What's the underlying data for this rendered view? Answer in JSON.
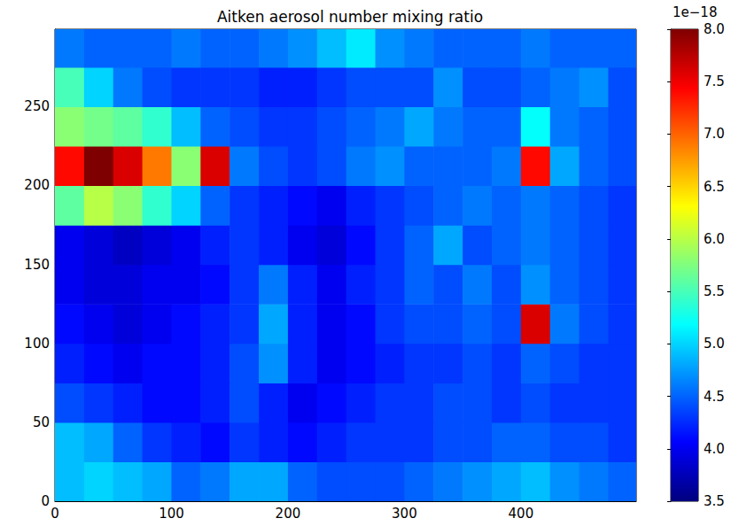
{
  "chart_data": {
    "type": "heatmap",
    "title": "Aitken aerosol number mixing ratio",
    "xlim": [
      0,
      499
    ],
    "ylim": [
      0,
      299
    ],
    "xticks": [
      0,
      100,
      200,
      300,
      400
    ],
    "yticks": [
      0,
      50,
      100,
      150,
      200,
      250
    ],
    "grid": false,
    "cells": {
      "x_edges": [
        0,
        25,
        50,
        75,
        100,
        125,
        150,
        175,
        200,
        225,
        250,
        275,
        300,
        325,
        350,
        375,
        400,
        425,
        450,
        475,
        500
      ],
      "y_edges": [
        0,
        25,
        50,
        75,
        100,
        125,
        150,
        175,
        200,
        225,
        250,
        275,
        300
      ],
      "values": [
        [
          4.9,
          5.0,
          4.9,
          4.8,
          4.5,
          4.6,
          4.8,
          4.8,
          4.5,
          4.4,
          4.4,
          4.4,
          4.5,
          4.6,
          4.7,
          4.8,
          4.9,
          4.7,
          4.6,
          4.5
        ],
        [
          4.9,
          4.8,
          4.5,
          4.3,
          4.2,
          4.1,
          4.3,
          4.2,
          4.1,
          4.2,
          4.3,
          4.3,
          4.3,
          4.4,
          4.4,
          4.5,
          4.5,
          4.4,
          4.4,
          4.3
        ],
        [
          4.4,
          4.3,
          4.2,
          4.1,
          4.1,
          4.2,
          4.4,
          4.2,
          4.0,
          4.1,
          4.2,
          4.3,
          4.3,
          4.4,
          4.4,
          4.3,
          4.4,
          4.3,
          4.3,
          4.3
        ],
        [
          4.2,
          4.1,
          4.0,
          4.1,
          4.1,
          4.2,
          4.4,
          4.7,
          4.2,
          4.0,
          4.1,
          4.2,
          4.3,
          4.3,
          4.4,
          4.3,
          4.5,
          4.4,
          4.3,
          4.3
        ],
        [
          4.1,
          4.0,
          3.9,
          4.0,
          4.1,
          4.2,
          4.3,
          4.8,
          4.2,
          4.0,
          4.1,
          4.3,
          4.4,
          4.4,
          4.5,
          4.4,
          7.6,
          4.6,
          4.4,
          4.3
        ],
        [
          4.0,
          3.9,
          3.9,
          4.0,
          4.0,
          4.1,
          4.3,
          4.6,
          4.2,
          4.0,
          4.2,
          4.3,
          4.5,
          4.4,
          4.6,
          4.4,
          4.7,
          4.5,
          4.4,
          4.3
        ],
        [
          4.0,
          3.9,
          3.8,
          3.9,
          4.0,
          4.2,
          4.3,
          4.2,
          4.0,
          3.9,
          4.1,
          4.3,
          4.5,
          4.8,
          4.4,
          4.5,
          4.6,
          4.5,
          4.4,
          4.3
        ],
        [
          5.6,
          6.0,
          5.8,
          5.4,
          5.0,
          4.5,
          4.3,
          4.2,
          4.1,
          4.0,
          4.2,
          4.3,
          4.4,
          4.5,
          4.6,
          4.5,
          4.6,
          4.5,
          4.4,
          4.3
        ],
        [
          7.4,
          8.0,
          7.6,
          6.9,
          5.8,
          7.6,
          4.6,
          4.4,
          4.3,
          4.4,
          4.6,
          4.7,
          4.5,
          4.5,
          4.5,
          4.6,
          7.4,
          4.8,
          4.5,
          4.4
        ],
        [
          5.8,
          5.7,
          5.6,
          5.4,
          4.9,
          4.5,
          4.4,
          4.3,
          4.3,
          4.4,
          4.5,
          4.6,
          4.8,
          4.6,
          4.5,
          4.5,
          5.2,
          4.6,
          4.5,
          4.4
        ],
        [
          5.5,
          5.0,
          4.6,
          4.4,
          4.3,
          4.3,
          4.3,
          4.2,
          4.2,
          4.3,
          4.4,
          4.4,
          4.4,
          4.7,
          4.4,
          4.4,
          4.5,
          4.6,
          4.7,
          4.4
        ],
        [
          4.6,
          4.5,
          4.5,
          4.5,
          4.6,
          4.5,
          4.5,
          4.6,
          4.7,
          4.9,
          5.1,
          4.7,
          4.6,
          4.5,
          4.5,
          4.5,
          4.6,
          4.5,
          4.5,
          4.5
        ]
      ]
    },
    "colorbar": {
      "range": [
        3.5,
        8.0
      ],
      "ticks": [
        3.5,
        {
          "value": 4,
          "label": "4.0"
        },
        4.5,
        {
          "value": 5,
          "label": "5.0"
        },
        5.5,
        {
          "value": 6,
          "label": "6.0"
        },
        6.5,
        {
          "value": 7,
          "label": "7.0"
        },
        7.5,
        {
          "value": 8,
          "label": "8.0"
        }
      ],
      "offset_label": "1e−18"
    }
  }
}
